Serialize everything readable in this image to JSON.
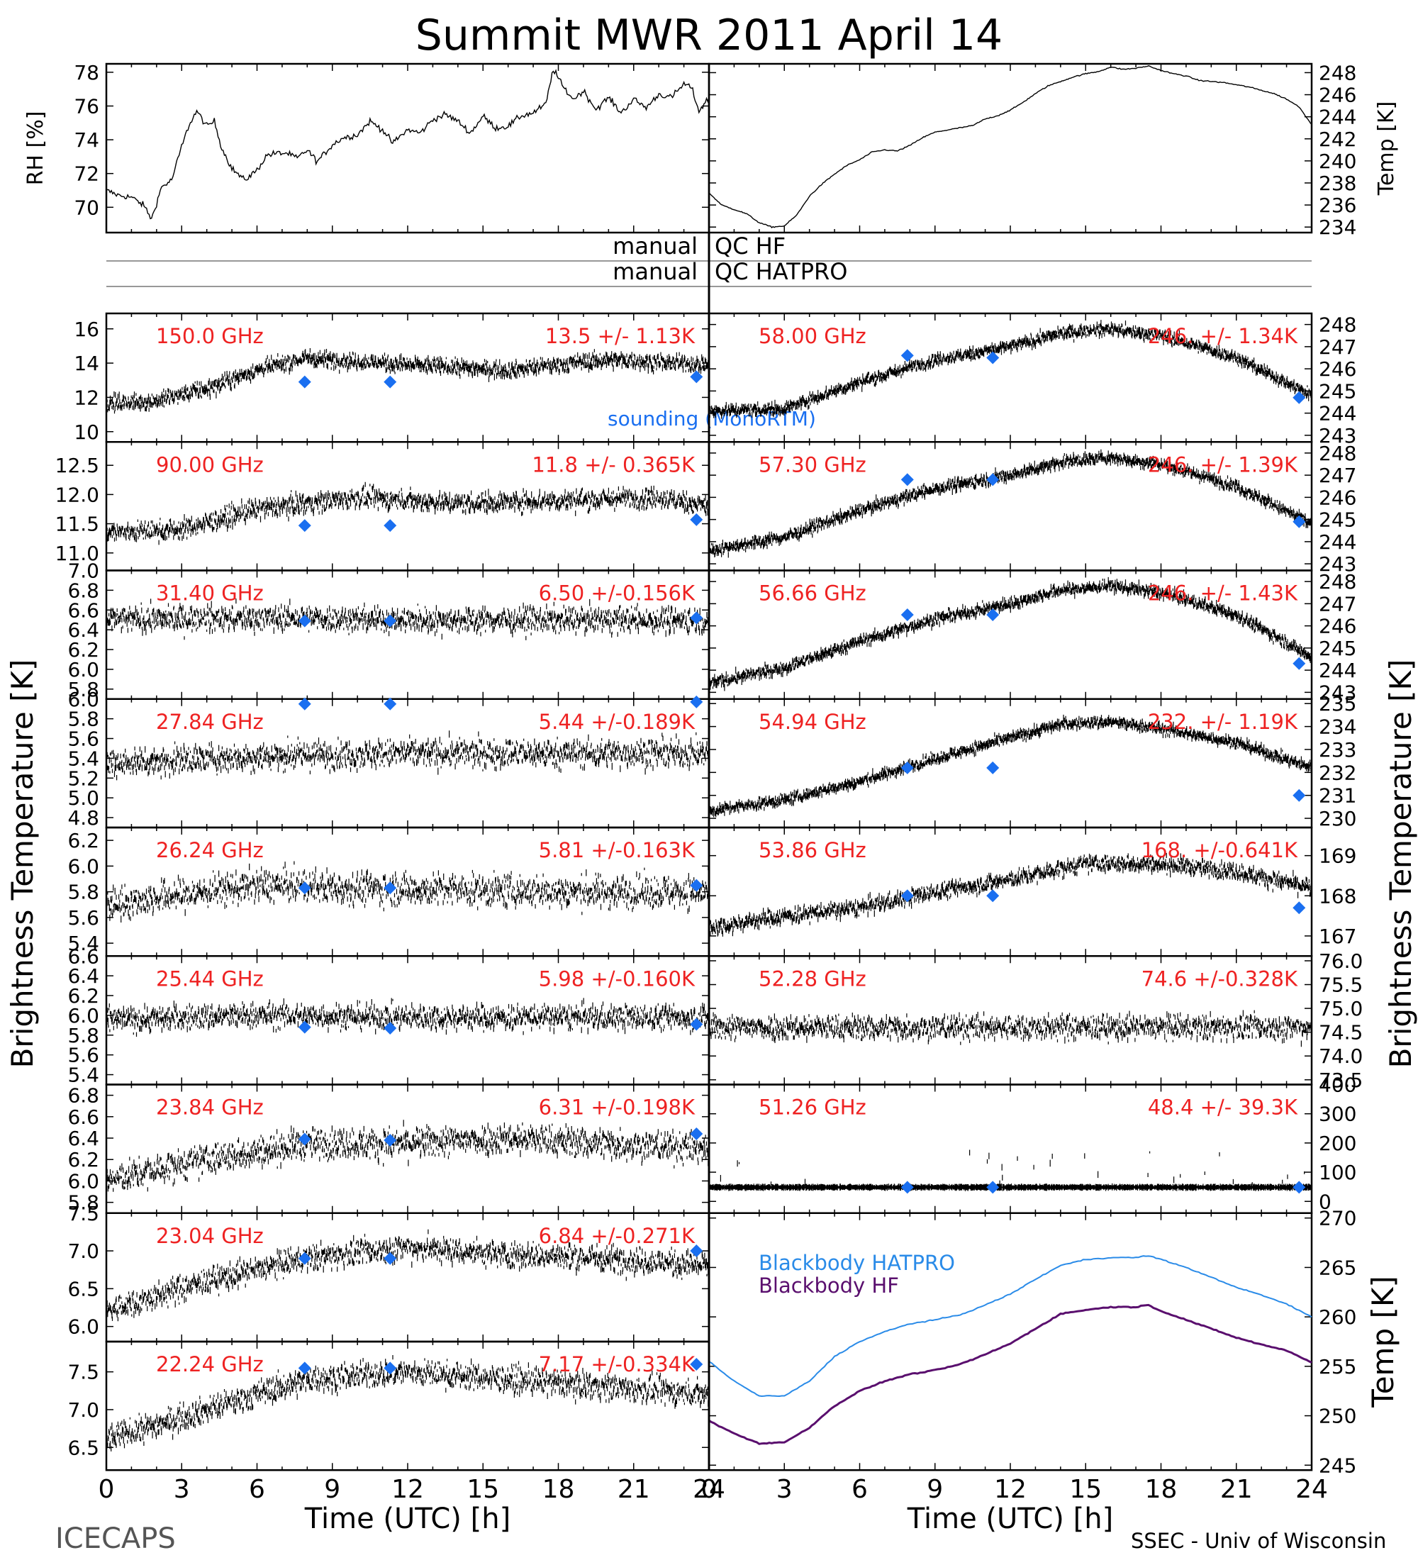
{
  "title": "Summit MWR 2011 April 14",
  "footer": {
    "left": "ICECAPS",
    "right": "SSEC - Univ of Wisconsin"
  },
  "qc_labels": [
    {
      "left": "manual",
      "right": "QC HF"
    },
    {
      "left": "manual",
      "right": "QC HATPRO"
    }
  ],
  "side_labels": {
    "left": "Brightness Temperature [K]",
    "right": "Brightness Temperature [K]"
  },
  "sounding_label": "sounding (MonoRTM)",
  "xaxis": {
    "label": "Time (UTC) [h]",
    "ticks": [
      0,
      3,
      6,
      9,
      12,
      15,
      18,
      21,
      24
    ]
  },
  "colors": {
    "marker": "#1a6ff0",
    "stats": "#ee2222",
    "line": "#000000",
    "hatpro": "#2a8be8",
    "hf": "#5a0f6e"
  },
  "chart_data": [
    {
      "id": "rh",
      "type": "line",
      "ylabel": "RH [%]",
      "ylim": [
        68.5,
        78.5
      ],
      "yticks": [
        70,
        72,
        74,
        76,
        78
      ],
      "x": [
        0,
        0.5,
        1,
        1.5,
        1.8,
        2.2,
        2.6,
        3,
        3.3,
        3.6,
        4,
        4.3,
        4.6,
        5,
        5.5,
        6,
        6.4,
        6.8,
        7.2,
        7.6,
        8,
        8.4,
        9,
        9.4,
        10,
        10.5,
        11,
        11.4,
        12,
        12.5,
        13,
        13.5,
        14,
        14.5,
        15,
        15.5,
        16,
        16.5,
        17,
        17.5,
        17.8,
        18.2,
        18.6,
        19,
        19.5,
        20,
        20.5,
        21,
        21.5,
        22,
        22.5,
        23,
        23.3,
        23.6,
        24
      ],
      "y": [
        71,
        70.7,
        70.6,
        70.1,
        69.3,
        71.2,
        71.6,
        73.6,
        74.9,
        75.7,
        74.8,
        75.1,
        73.5,
        72.3,
        71.6,
        72.2,
        73.1,
        73.2,
        73.2,
        72.9,
        73.4,
        72.7,
        73.7,
        74.1,
        74.3,
        75.1,
        74.6,
        73.8,
        74.6,
        74.4,
        75.2,
        75.5,
        75.1,
        74.4,
        75.4,
        74.7,
        74.8,
        75.4,
        75.6,
        76.1,
        78.2,
        77.1,
        76.4,
        76.9,
        75.8,
        76.5,
        75.6,
        76.4,
        75.9,
        76.7,
        76.5,
        77.3,
        77.1,
        75.7,
        76.5
      ]
    },
    {
      "id": "temp",
      "type": "line",
      "ylabel": "Temp [K]",
      "ylim": [
        233.5,
        248.8
      ],
      "yticks": [
        234,
        236,
        238,
        240,
        242,
        244,
        246,
        248
      ],
      "x": [
        0,
        0.5,
        1,
        1.5,
        2,
        2.5,
        3,
        3.5,
        4,
        4.5,
        5,
        5.5,
        6,
        6.5,
        7,
        7.5,
        8,
        8.5,
        9,
        9.5,
        10,
        10.5,
        11,
        11.5,
        12,
        12.5,
        13,
        13.5,
        14,
        14.5,
        15,
        15.5,
        16,
        16.5,
        17,
        17.5,
        18,
        18.5,
        19,
        19.5,
        20,
        20.5,
        21,
        21.5,
        22,
        22.5,
        23,
        23.5,
        24
      ],
      "y": [
        237.1,
        236,
        235.6,
        235.2,
        234.4,
        234,
        234.1,
        235.1,
        236.8,
        237.9,
        238.8,
        239.6,
        240.1,
        240.8,
        241,
        240.9,
        241.4,
        242.1,
        242.6,
        242.8,
        243,
        243.2,
        243.8,
        244.1,
        244.6,
        245.3,
        246.1,
        246.8,
        247.2,
        247.6,
        247.9,
        248.1,
        248.5,
        248.3,
        248.4,
        248.6,
        248.2,
        247.9,
        247.7,
        247.3,
        247.2,
        247.1,
        246.9,
        246.7,
        246.4,
        246.1,
        245.6,
        244.9,
        243.3
      ]
    },
    {
      "id": "c150",
      "type": "scatter",
      "freq_label": "150.0 GHz",
      "stats_label": "13.5 +/- 1.13K",
      "ylim": [
        9.4,
        16.9
      ],
      "yticks": [
        10,
        12,
        14,
        16
      ],
      "trend": {
        "x": [
          0,
          2,
          4,
          6,
          8,
          12,
          16,
          20,
          24
        ],
        "y": [
          11.6,
          11.8,
          12.5,
          13.6,
          14.3,
          13.9,
          13.6,
          14.2,
          13.9
        ]
      },
      "noise": 0.8,
      "sounding": {
        "x": [
          7.9,
          11.3,
          23.5
        ],
        "y": [
          12.9,
          12.9,
          13.2
        ]
      }
    },
    {
      "id": "c90",
      "type": "scatter",
      "freq_label": "90.00 GHz",
      "stats_label": "11.8 +/- 0.365K",
      "ylim": [
        10.7,
        12.9
      ],
      "yticks": [
        11.0,
        11.5,
        12.0,
        12.5
      ],
      "trend": {
        "x": [
          0,
          3,
          6,
          10,
          14,
          18,
          22,
          24
        ],
        "y": [
          11.35,
          11.4,
          11.75,
          11.95,
          11.85,
          11.9,
          11.95,
          11.8
        ]
      },
      "noise": 0.3,
      "sounding": {
        "x": [
          7.9,
          11.3,
          23.5
        ],
        "y": [
          11.47,
          11.47,
          11.57
        ]
      }
    },
    {
      "id": "c314",
      "type": "scatter",
      "freq_label": "31.40 GHz",
      "stats_label": "6.50 +/-0.156K",
      "ylim": [
        5.7,
        7.0
      ],
      "yticks": [
        5.8,
        6.0,
        6.2,
        6.4,
        6.6,
        6.8,
        7.0
      ],
      "trend": {
        "x": [
          0,
          6,
          12,
          18,
          24
        ],
        "y": [
          6.5,
          6.52,
          6.5,
          6.5,
          6.5
        ]
      },
      "noise": 0.22,
      "sounding": {
        "x": [
          7.9,
          11.3,
          23.5
        ],
        "y": [
          6.49,
          6.49,
          6.52
        ]
      }
    },
    {
      "id": "c2784",
      "type": "scatter",
      "freq_label": "27.84 GHz",
      "stats_label": "5.44 +/-0.189K",
      "ylim": [
        4.7,
        6.0
      ],
      "yticks": [
        4.8,
        5.0,
        5.2,
        5.4,
        5.6,
        5.8,
        6.0
      ],
      "trend": {
        "x": [
          0,
          6,
          12,
          18,
          24
        ],
        "y": [
          5.35,
          5.42,
          5.45,
          5.45,
          5.45
        ]
      },
      "noise": 0.25,
      "sounding": {
        "x": [
          7.9,
          11.3,
          23.5
        ],
        "y": [
          5.95,
          5.95,
          5.97
        ]
      }
    },
    {
      "id": "c2624",
      "type": "scatter",
      "freq_label": "26.24 GHz",
      "stats_label": "5.81 +/-0.163K",
      "ylim": [
        5.3,
        6.3
      ],
      "yticks": [
        5.4,
        5.6,
        5.8,
        6.0,
        6.2
      ],
      "trend": {
        "x": [
          0,
          6,
          12,
          18,
          24
        ],
        "y": [
          5.7,
          5.85,
          5.82,
          5.8,
          5.8
        ]
      },
      "noise": 0.22,
      "sounding": {
        "x": [
          7.9,
          11.3,
          23.5
        ],
        "y": [
          5.83,
          5.83,
          5.85
        ]
      }
    },
    {
      "id": "c2544",
      "type": "scatter",
      "freq_label": "25.44 GHz",
      "stats_label": "5.98 +/-0.160K",
      "ylim": [
        5.3,
        6.6
      ],
      "yticks": [
        5.4,
        5.6,
        5.8,
        6.0,
        6.2,
        6.4,
        6.6
      ],
      "trend": {
        "x": [
          0,
          6,
          12,
          18,
          24
        ],
        "y": [
          5.95,
          6.0,
          5.98,
          5.98,
          5.98
        ]
      },
      "noise": 0.22,
      "sounding": {
        "x": [
          7.9,
          11.3,
          23.5
        ],
        "y": [
          5.88,
          5.87,
          5.91
        ]
      }
    },
    {
      "id": "c2384",
      "type": "scatter",
      "freq_label": "23.84 GHz",
      "stats_label": "6.31 +/-0.198K",
      "ylim": [
        5.7,
        6.9
      ],
      "yticks": [
        5.8,
        6.0,
        6.2,
        6.4,
        6.6,
        6.8
      ],
      "trend": {
        "x": [
          0,
          4,
          8,
          12,
          16,
          20,
          24
        ],
        "y": [
          6.0,
          6.2,
          6.35,
          6.35,
          6.4,
          6.35,
          6.3
        ]
      },
      "noise": 0.25,
      "sounding": {
        "x": [
          7.9,
          11.3,
          23.5
        ],
        "y": [
          6.39,
          6.38,
          6.44
        ]
      }
    },
    {
      "id": "c2304",
      "type": "scatter",
      "freq_label": "23.04 GHz",
      "stats_label": "6.84 +/-0.271K",
      "ylim": [
        5.8,
        7.5
      ],
      "yticks": [
        6.0,
        6.5,
        7.0,
        7.5
      ],
      "trend": {
        "x": [
          0,
          4,
          8,
          12,
          16,
          20,
          24
        ],
        "y": [
          6.2,
          6.6,
          6.9,
          7.05,
          6.95,
          6.9,
          6.8
        ]
      },
      "noise": 0.3,
      "sounding": {
        "x": [
          7.9,
          11.3,
          23.5
        ],
        "y": [
          6.9,
          6.9,
          7.0
        ]
      }
    },
    {
      "id": "c2224",
      "type": "scatter",
      "freq_label": "22.24 GHz",
      "stats_label": "7.17 +/-0.334K",
      "ylim": [
        6.2,
        7.9
      ],
      "yticks": [
        6.5,
        7.0,
        7.5
      ],
      "trend": {
        "x": [
          0,
          4,
          8,
          12,
          16,
          20,
          24
        ],
        "y": [
          6.6,
          7.0,
          7.4,
          7.5,
          7.4,
          7.3,
          7.2
        ]
      },
      "noise": 0.3,
      "sounding": {
        "x": [
          7.9,
          11.3,
          23.5
        ],
        "y": [
          7.55,
          7.55,
          7.6
        ]
      }
    },
    {
      "id": "c5800",
      "type": "scatter",
      "freq_label": "58.00 GHz",
      "stats_label": "246. +/- 1.34K",
      "ylim": [
        242.7,
        248.5
      ],
      "yticks": [
        243,
        244,
        245,
        246,
        247,
        248
      ],
      "trend": {
        "x": [
          0,
          3,
          6,
          9,
          12,
          14,
          16,
          18,
          21,
          24
        ],
        "y": [
          244.1,
          244.2,
          245.4,
          246.4,
          247.0,
          247.6,
          247.8,
          247.5,
          246.5,
          244.8
        ]
      },
      "noise": 0.45,
      "sounding": {
        "x": [
          7.9,
          11.3,
          23.5
        ],
        "y": [
          246.6,
          246.5,
          244.7
        ]
      }
    },
    {
      "id": "c5730",
      "type": "scatter",
      "freq_label": "57.30 GHz",
      "stats_label": "246. +/- 1.39K",
      "ylim": [
        242.7,
        248.5
      ],
      "yticks": [
        243,
        244,
        245,
        246,
        247,
        248
      ],
      "trend": {
        "x": [
          0,
          3,
          6,
          9,
          12,
          14,
          16,
          18,
          21,
          24
        ],
        "y": [
          243.6,
          244.2,
          245.4,
          246.4,
          247.0,
          247.6,
          247.8,
          247.5,
          246.5,
          244.8
        ]
      },
      "noise": 0.45,
      "sounding": {
        "x": [
          7.9,
          11.3,
          23.5
        ],
        "y": [
          246.8,
          246.8,
          244.9
        ]
      }
    },
    {
      "id": "c5666",
      "type": "scatter",
      "freq_label": "56.66 GHz",
      "stats_label": "246. +/- 1.43K",
      "ylim": [
        242.7,
        248.5
      ],
      "yticks": [
        243,
        244,
        245,
        246,
        247,
        248
      ],
      "trend": {
        "x": [
          0,
          3,
          6,
          9,
          12,
          14,
          16,
          18,
          21,
          24
        ],
        "y": [
          243.4,
          244.1,
          245.3,
          246.3,
          247.0,
          247.6,
          247.8,
          247.5,
          246.5,
          244.6
        ]
      },
      "noise": 0.45,
      "sounding": {
        "x": [
          7.9,
          11.3,
          23.5
        ],
        "y": [
          246.5,
          246.5,
          244.3
        ]
      }
    },
    {
      "id": "c5494",
      "type": "scatter",
      "freq_label": "54.94 GHz",
      "stats_label": "232. +/- 1.19K",
      "ylim": [
        229.6,
        235.2
      ],
      "yticks": [
        230,
        231,
        232,
        233,
        234,
        235
      ],
      "trend": {
        "x": [
          0,
          3,
          6,
          9,
          12,
          14,
          16,
          18,
          21,
          24
        ],
        "y": [
          230.3,
          230.8,
          231.6,
          232.6,
          233.5,
          234.1,
          234.2,
          233.9,
          233.3,
          232.2
        ]
      },
      "noise": 0.4,
      "sounding": {
        "x": [
          7.9,
          11.3,
          23.5
        ],
        "y": [
          232.2,
          232.2,
          231.0
        ]
      }
    },
    {
      "id": "c5386",
      "type": "scatter",
      "freq_label": "53.86 GHz",
      "stats_label": "168. +/-0.641K",
      "ylim": [
        166.5,
        169.7
      ],
      "yticks": [
        167,
        168,
        169
      ],
      "trend": {
        "x": [
          0,
          3,
          6,
          9,
          12,
          15,
          18,
          21,
          24
        ],
        "y": [
          167.2,
          167.5,
          167.7,
          168.1,
          168.4,
          168.8,
          168.8,
          168.6,
          168.2
        ]
      },
      "noise": 0.35,
      "sounding": {
        "x": [
          7.9,
          11.3,
          23.5
        ],
        "y": [
          168.0,
          168.0,
          167.7
        ]
      }
    },
    {
      "id": "c5228",
      "type": "scatter",
      "freq_label": "52.28 GHz",
      "stats_label": "74.6 +/-0.328K",
      "ylim": [
        73.4,
        76.1
      ],
      "yticks": [
        73.5,
        74.0,
        74.5,
        75.0,
        75.5,
        76.0
      ],
      "trend": {
        "x": [
          0,
          12,
          24
        ],
        "y": [
          74.6,
          74.6,
          74.6
        ]
      },
      "noise": 0.45,
      "sounding": {
        "x": [],
        "y": []
      }
    },
    {
      "id": "c5126",
      "type": "scatter",
      "freq_label": "51.26 GHz",
      "stats_label": "48.4 +/- 39.3K",
      "ylim": [
        -40,
        400
      ],
      "yticks": [
        0,
        100,
        200,
        300,
        400
      ],
      "trend": {
        "x": [
          0,
          24
        ],
        "y": [
          48.4,
          48.4
        ]
      },
      "noise": 2,
      "sounding": {
        "x": [
          7.9,
          11.3,
          23.5
        ],
        "y": [
          48.4,
          48.4,
          48.4
        ]
      }
    },
    {
      "id": "blackbody",
      "type": "line",
      "ylabel": "Temp [K]",
      "ylim": [
        244.5,
        270.5
      ],
      "yticks": [
        245,
        250,
        255,
        260,
        265,
        270
      ],
      "series": [
        {
          "name": "Blackbody HATPRO",
          "x": [
            0,
            1,
            2,
            3,
            4,
            5,
            6,
            7,
            8,
            9,
            10,
            11,
            12,
            13,
            14,
            15,
            16,
            17,
            17.5,
            18,
            19,
            20,
            21,
            22,
            23,
            24
          ],
          "y": [
            255.5,
            253.5,
            252,
            252,
            253.5,
            256,
            257.5,
            258.5,
            259.3,
            259.7,
            260.2,
            261.2,
            262.3,
            263.8,
            265.2,
            265.8,
            266,
            266,
            266.2,
            265.8,
            265,
            264,
            263,
            262.2,
            261.3,
            260
          ]
        },
        {
          "name": "Blackbody HF",
          "x": [
            0,
            1,
            2,
            3,
            4,
            5,
            6,
            7,
            8,
            9,
            10,
            11,
            12,
            13,
            14,
            15,
            16,
            17,
            17.5,
            18,
            19,
            20,
            21,
            22,
            23,
            24
          ],
          "y": [
            249.5,
            248.2,
            247.2,
            247.3,
            248.8,
            251,
            252.5,
            253.5,
            254.2,
            254.6,
            255.2,
            256.2,
            257.3,
            258.8,
            260.3,
            260.7,
            261,
            261,
            261.2,
            260.6,
            259.7,
            258.8,
            257.9,
            257.2,
            256.6,
            255.4
          ]
        }
      ]
    }
  ]
}
